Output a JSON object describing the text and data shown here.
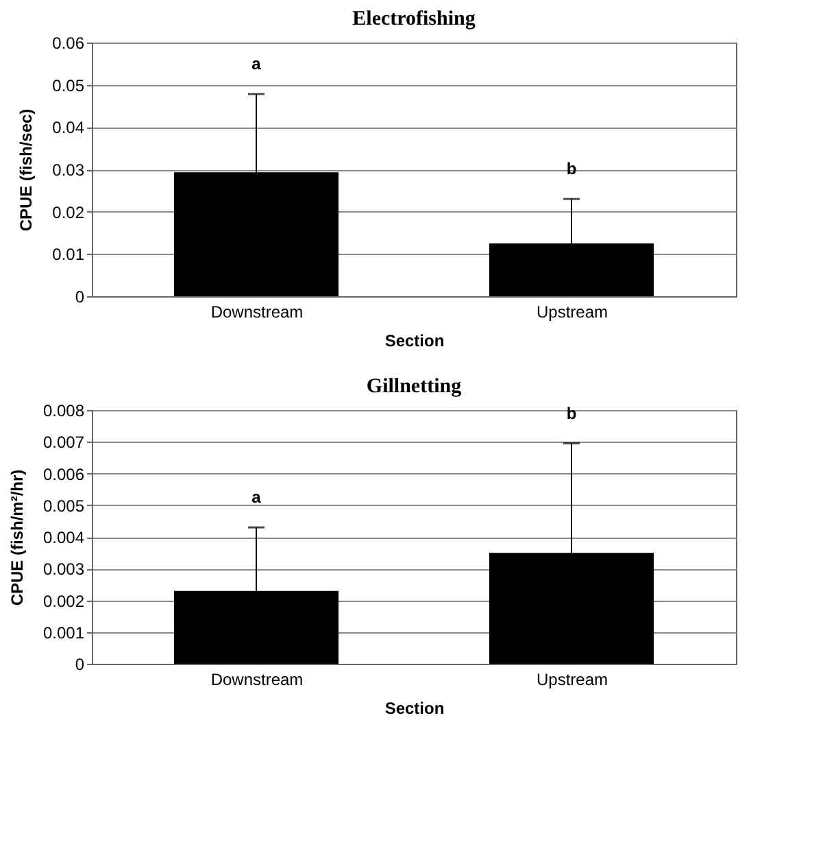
{
  "chart_data": [
    {
      "type": "bar",
      "title": "Electrofishing",
      "xlabel": "Section",
      "ylabel": "CPUE (fish/sec)",
      "categories": [
        "Downstream",
        "Upstream"
      ],
      "values": [
        0.0293,
        0.0125
      ],
      "errors": [
        [
          0.0293,
          0.0478
        ],
        [
          0.0125,
          0.023
        ]
      ],
      "color": "#000000",
      "ylim": [
        0,
        0.06
      ],
      "yticks": [
        0,
        0.01,
        0.02,
        0.03,
        0.04,
        0.05,
        0.06
      ],
      "grid": "y",
      "annotations": [
        "a",
        "b"
      ]
    },
    {
      "type": "bar",
      "title": "Gillnetting",
      "xlabel": "Section",
      "ylabel": "CPUE (fish/m²/hr)",
      "categories": [
        "Downstream",
        "Upstream"
      ],
      "values": [
        0.0023,
        0.0035
      ],
      "errors": [
        [
          0.0023,
          0.0043
        ],
        [
          0.0035,
          0.00695
        ]
      ],
      "color": "#000000",
      "ylim": [
        0,
        0.008
      ],
      "yticks": [
        0,
        0.001,
        0.002,
        0.003,
        0.004,
        0.005,
        0.006,
        0.007,
        0.008
      ],
      "grid": "y",
      "annotations": [
        "a",
        "b"
      ]
    }
  ]
}
